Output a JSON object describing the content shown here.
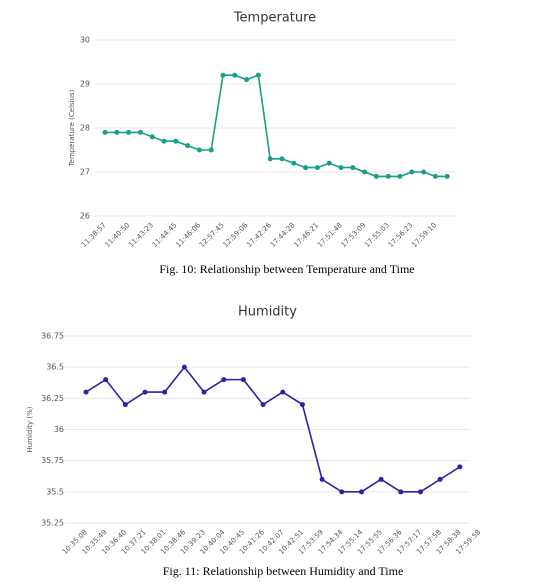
{
  "chart_data": [
    {
      "type": "line",
      "title": "Temperature",
      "y_label": "Temperature (Celsius)",
      "categories": [
        "11:38:57",
        null,
        "11:40:50",
        null,
        "11:43:23",
        null,
        "11:44:45",
        null,
        "11:46:06",
        null,
        "12:57:45",
        null,
        "12:59:06",
        null,
        "17:42:26",
        null,
        "17:44:28",
        null,
        "17:46:21",
        null,
        "17:51:48",
        null,
        "17:53:09",
        null,
        "17:55:03",
        null,
        "17:56:23",
        null,
        "17:59:10",
        null
      ],
      "series": [
        {
          "name": "Temperature",
          "color": "#17a085",
          "values": [
            27.9,
            27.9,
            27.9,
            27.9,
            27.8,
            27.7,
            27.7,
            27.6,
            27.5,
            27.5,
            29.2,
            29.2,
            29.1,
            29.2,
            27.3,
            27.3,
            27.2,
            27.1,
            27.1,
            27.2,
            27.1,
            27.1,
            27.0,
            26.9,
            26.9,
            26.9,
            27.0,
            27.0,
            26.9,
            26.9
          ]
        }
      ],
      "ylim": [
        26,
        30
      ],
      "yticks": [
        26,
        27,
        28,
        29,
        30
      ],
      "grid": true
    },
    {
      "type": "line",
      "title": "Humidity",
      "y_label": "Humidity (%)",
      "categories": [
        "10:35:08",
        "10:35:49",
        "10:36:40",
        "10:37:21",
        "10:38:01",
        "10:38:46",
        "10:39:23",
        "10:40:04",
        "10:40:45",
        "10:41:26",
        "10:42:07",
        "10:42:51",
        "17:53:59",
        "17:54:34",
        "17:55:14",
        "17:55:55",
        "17:56:36",
        "17:57:17",
        "17:57:58",
        "17:58:38",
        "17:59:58"
      ],
      "series": [
        {
          "name": "Humidity",
          "color": "#2e22a3",
          "values": [
            36.3,
            36.4,
            36.2,
            36.3,
            36.3,
            36.5,
            36.3,
            36.4,
            36.4,
            36.2,
            36.3,
            36.2,
            35.6,
            35.5,
            35.5,
            35.6,
            35.5,
            35.5,
            35.6,
            35.7,
            null
          ]
        }
      ],
      "ylim": [
        35.25,
        36.75
      ],
      "yticks": [
        35.25,
        35.5,
        35.75,
        36,
        36.25,
        36.5,
        36.75
      ],
      "grid": true
    }
  ],
  "captions": [
    "Fig. 10: Relationship between Temperature and Time",
    "Fig. 11: Relationship between Humidity and Time"
  ]
}
